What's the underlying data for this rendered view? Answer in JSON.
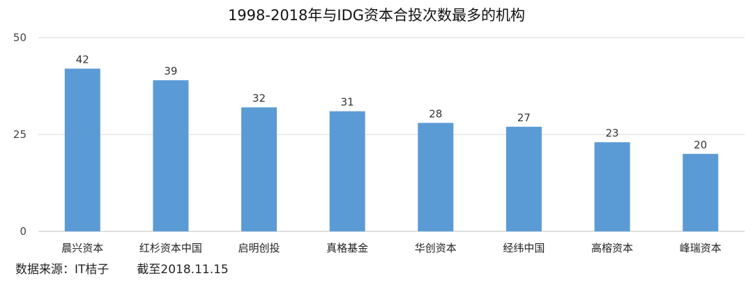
{
  "chart_data": {
    "type": "bar",
    "title": "1998-2018年与IDG资本合投次数最多的机构",
    "categories": [
      "晨兴资本",
      "红杉资本中国",
      "启明创投",
      "真格基金",
      "华创资本",
      "经纬中国",
      "高榕资本",
      "峰瑞资本"
    ],
    "values": [
      42,
      39,
      32,
      31,
      28,
      27,
      23,
      20
    ],
    "yticks": [
      0,
      25,
      50
    ],
    "ylim": [
      0,
      50
    ],
    "grid": true,
    "data_labels": true,
    "bar_color": "#5B9BD5",
    "xlabel": "",
    "ylabel": ""
  },
  "footer": {
    "source": "数据来源：IT桔子",
    "cutoff": "截至2018.11.15"
  }
}
